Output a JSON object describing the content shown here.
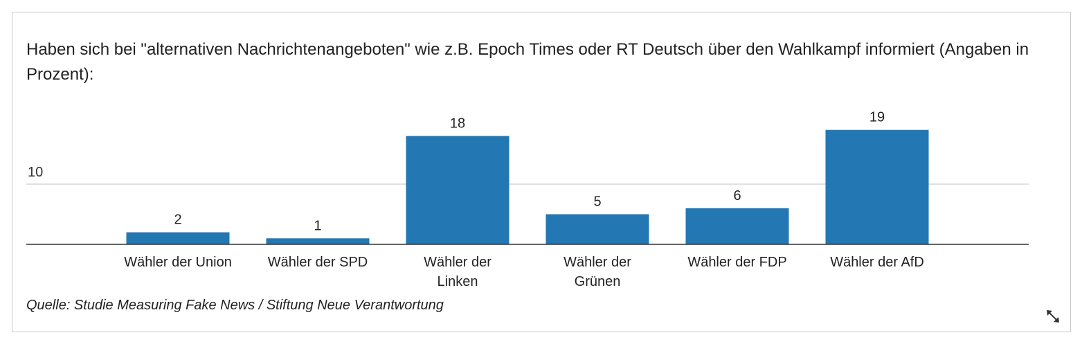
{
  "chart_data": {
    "type": "bar",
    "title": "Haben sich bei \"alternativen Nachrichtenangeboten\" wie z.B. Epoch Times oder RT Deutsch über den Wahlkampf informiert (Angaben in Prozent):",
    "categories": [
      [
        "Wähler der Union"
      ],
      [
        "Wähler der SPD"
      ],
      [
        "Wähler der",
        "Linken"
      ],
      [
        "Wähler der",
        "Grünen"
      ],
      [
        "Wähler der FDP"
      ],
      [
        "Wähler der AfD"
      ]
    ],
    "values": [
      2,
      1,
      18,
      5,
      6,
      19
    ],
    "y_ticks": [
      10
    ],
    "ylim": [
      0,
      20
    ],
    "grid": true,
    "legend": "none",
    "bar_color": "#2377b3",
    "source": "Quelle: Studie Measuring Fake News / Stiftung Neue Verantwortung"
  },
  "icons": {
    "expand": "expand-arrows-icon"
  }
}
